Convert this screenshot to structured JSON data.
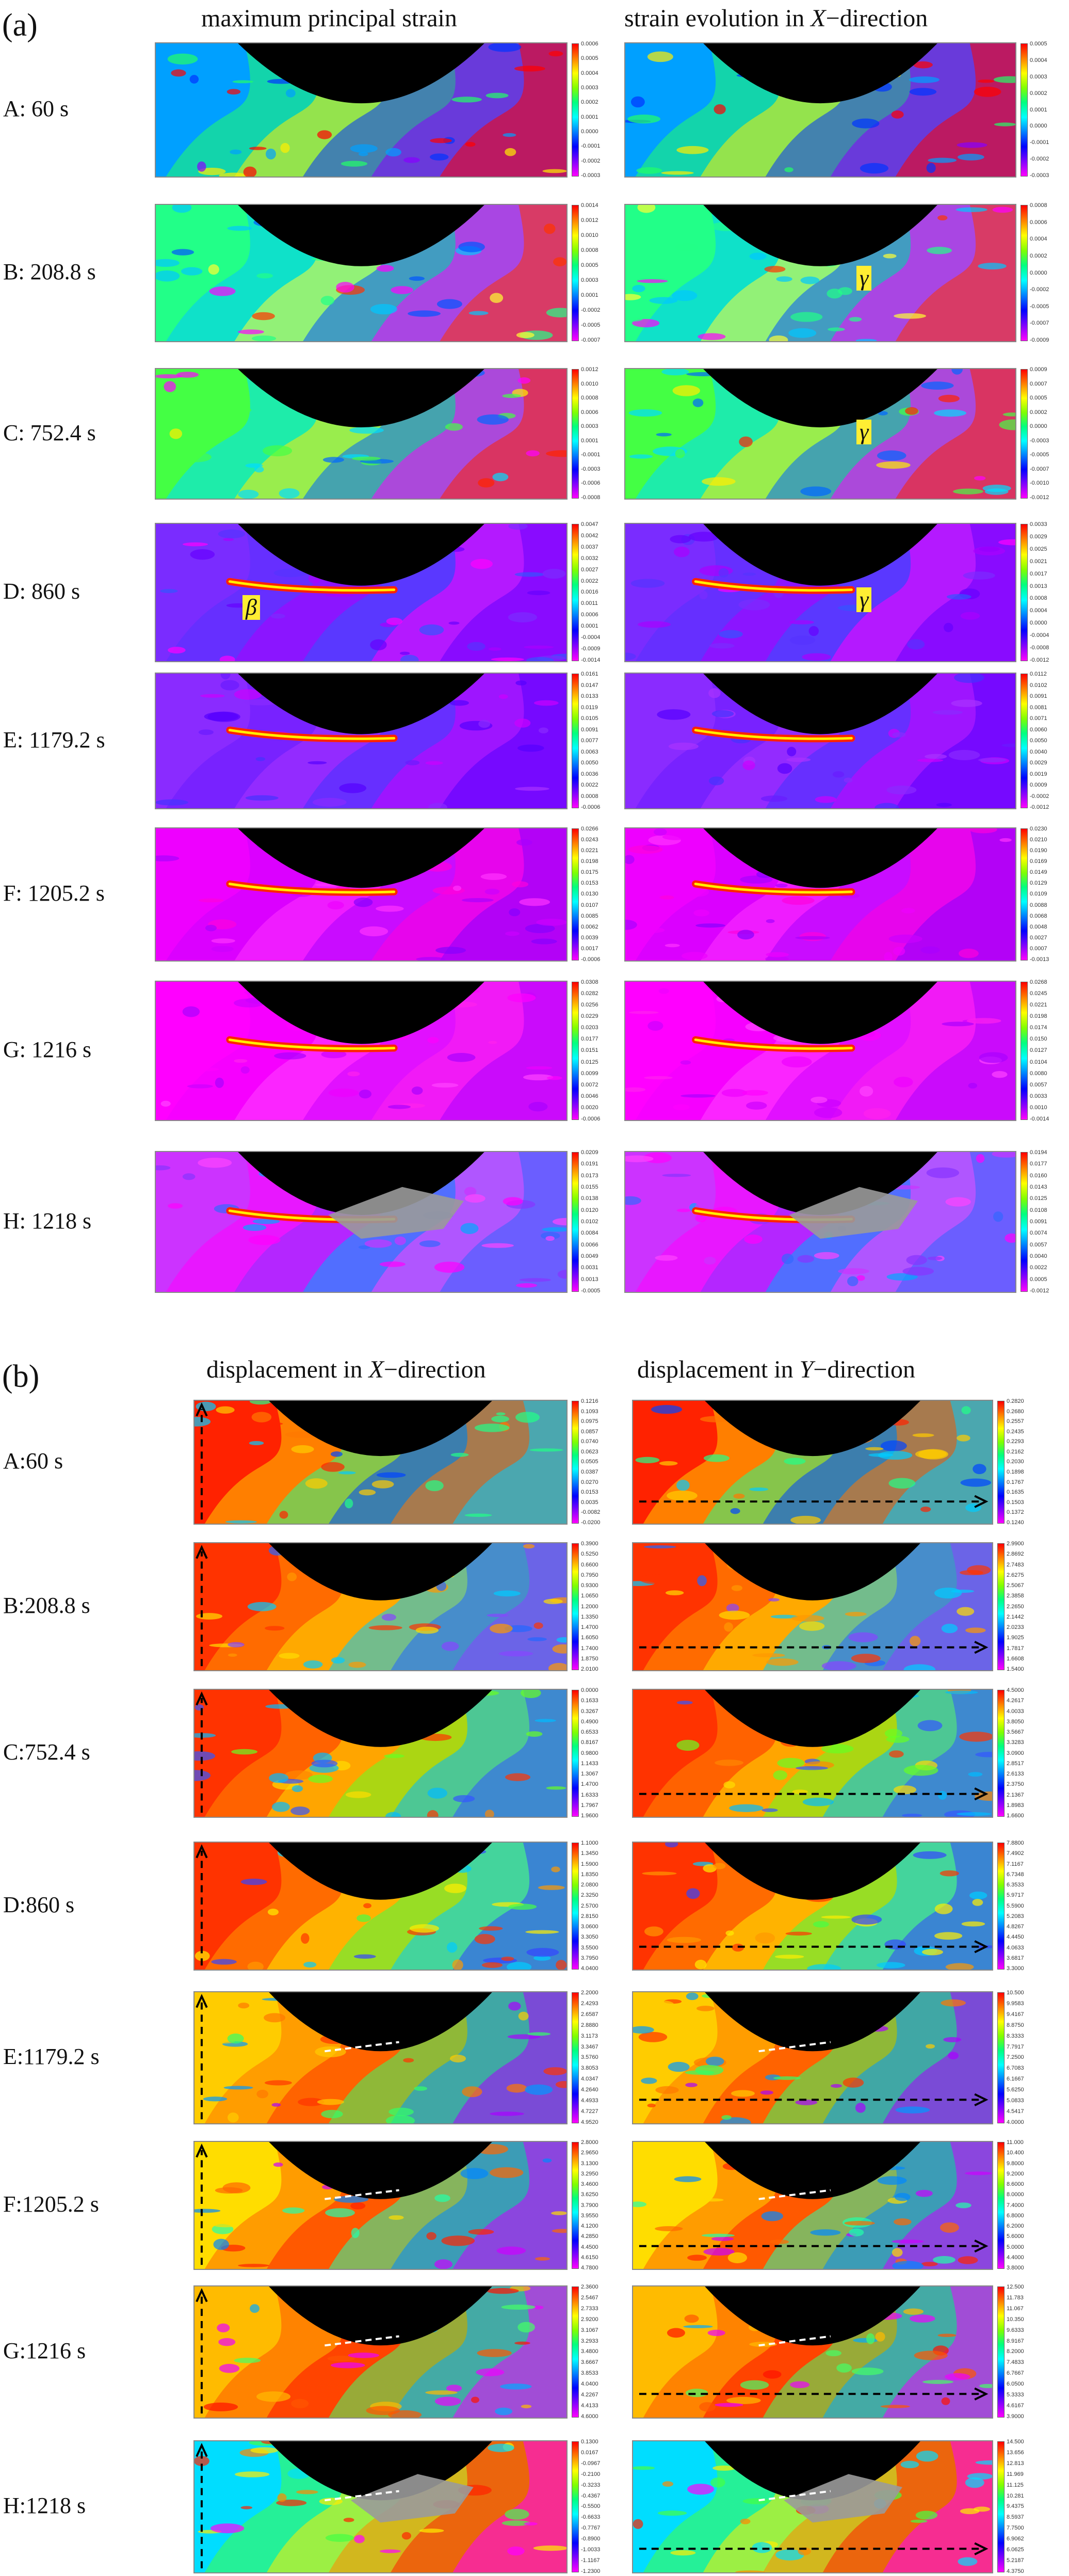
{
  "panel_a": {
    "tag": "(a)",
    "col_left": "maximum principal strain",
    "col_right": "strain evolution in X−direction",
    "rows": [
      {
        "label": "A: 60 s",
        "left_ticks": [
          "0.0006",
          "0.0005",
          "0.0004",
          "0.0003",
          "0.0002",
          "0.0001",
          "0.0000",
          "-0.0001",
          "-0.0002",
          "-0.0003"
        ],
        "right_ticks": [
          "0.0005",
          "0.0004",
          "0.0003",
          "0.0002",
          "0.0001",
          "0.0000",
          "-0.0001",
          "-0.0002",
          "-0.0003"
        ]
      },
      {
        "label": "B: 208.8 s",
        "left_ticks": [
          "0.0014",
          "0.0012",
          "0.0010",
          "0.0008",
          "0.0005",
          "0.0003",
          "0.0001",
          "-0.0002",
          "-0.0005",
          "-0.0007"
        ],
        "right_ticks": [
          "0.0008",
          "0.0006",
          "0.0004",
          "0.0002",
          "0.0000",
          "-0.0002",
          "-0.0005",
          "-0.0007",
          "-0.0009"
        ]
      },
      {
        "label": "C: 752.4 s",
        "left_ticks": [
          "0.0012",
          "0.0010",
          "0.0008",
          "0.0006",
          "0.0003",
          "0.0001",
          "-0.0001",
          "-0.0003",
          "-0.0006",
          "-0.0008"
        ],
        "right_ticks": [
          "0.0009",
          "0.0007",
          "0.0005",
          "0.0002",
          "0.0000",
          "-0.0003",
          "-0.0005",
          "-0.0007",
          "-0.0010",
          "-0.0012"
        ]
      },
      {
        "label": "D: 860 s",
        "left_ticks": [
          "0.0047",
          "0.0042",
          "0.0037",
          "0.0032",
          "0.0027",
          "0.0022",
          "0.0016",
          "0.0011",
          "0.0006",
          "0.0001",
          "-0.0004",
          "-0.0009",
          "-0.0014"
        ],
        "right_ticks": [
          "0.0033",
          "0.0029",
          "0.0025",
          "0.0021",
          "0.0017",
          "0.0013",
          "0.0008",
          "0.0004",
          "0.0000",
          "-0.0004",
          "-0.0008",
          "-0.0012"
        ]
      },
      {
        "label": "E: 1179.2 s",
        "left_ticks": [
          "0.0161",
          "0.0147",
          "0.0133",
          "0.0119",
          "0.0105",
          "0.0091",
          "0.0077",
          "0.0063",
          "0.0050",
          "0.0036",
          "0.0022",
          "0.0008",
          "-0.0006"
        ],
        "right_ticks": [
          "0.0112",
          "0.0102",
          "0.0091",
          "0.0081",
          "0.0071",
          "0.0060",
          "0.0050",
          "0.0040",
          "0.0029",
          "0.0019",
          "0.0009",
          "-0.0002",
          "-0.0012"
        ]
      },
      {
        "label": "F: 1205.2 s",
        "left_ticks": [
          "0.0266",
          "0.0243",
          "0.0221",
          "0.0198",
          "0.0175",
          "0.0153",
          "0.0130",
          "0.0107",
          "0.0085",
          "0.0062",
          "0.0039",
          "0.0017",
          "-0.0006"
        ],
        "right_ticks": [
          "0.0230",
          "0.0210",
          "0.0190",
          "0.0169",
          "0.0149",
          "0.0129",
          "0.0109",
          "0.0088",
          "0.0068",
          "0.0048",
          "0.0027",
          "0.0007",
          "-0.0013"
        ]
      },
      {
        "label": "G: 1216 s",
        "left_ticks": [
          "0.0308",
          "0.0282",
          "0.0256",
          "0.0229",
          "0.0203",
          "0.0177",
          "0.0151",
          "0.0125",
          "0.0099",
          "0.0072",
          "0.0046",
          "0.0020",
          "-0.0006"
        ],
        "right_ticks": [
          "0.0268",
          "0.0245",
          "0.0221",
          "0.0198",
          "0.0174",
          "0.0150",
          "0.0127",
          "0.0104",
          "0.0080",
          "0.0057",
          "0.0033",
          "0.0010",
          "-0.0014"
        ]
      },
      {
        "label": "H: 1218 s",
        "left_ticks": [
          "0.0209",
          "0.0191",
          "0.0173",
          "0.0155",
          "0.0138",
          "0.0120",
          "0.0102",
          "0.0084",
          "0.0066",
          "0.0049",
          "0.0031",
          "0.0013",
          "-0.0005"
        ],
        "right_ticks": [
          "0.0194",
          "0.0177",
          "0.0160",
          "0.0143",
          "0.0125",
          "0.0108",
          "0.0091",
          "0.0074",
          "0.0057",
          "0.0040",
          "0.0022",
          "0.0005",
          "-0.0012"
        ]
      }
    ],
    "markers": {
      "beta": "β",
      "gamma": "γ"
    }
  },
  "panel_b": {
    "tag": "(b)",
    "col_left": "displacement in X−direction",
    "col_right": "displacement in Y−direction",
    "rows": [
      {
        "label": "A:60 s",
        "left_ticks": [
          "0.1216",
          "0.1093",
          "0.0975",
          "0.0857",
          "0.0740",
          "0.0623",
          "0.0505",
          "0.0387",
          "0.0270",
          "0.0153",
          "0.0035",
          "-0.0082",
          "-0.0200"
        ],
        "right_ticks": [
          "0.2820",
          "0.2680",
          "0.2557",
          "0.2435",
          "0.2293",
          "0.2162",
          "0.2030",
          "0.1898",
          "0.1767",
          "0.1635",
          "0.1503",
          "0.1372",
          "0.1240"
        ]
      },
      {
        "label": "B:208.8 s",
        "left_ticks": [
          "0.3900",
          "0.5250",
          "0.6600",
          "0.7950",
          "0.9300",
          "1.0650",
          "1.2000",
          "1.3350",
          "1.4700",
          "1.6050",
          "1.7400",
          "1.8750",
          "2.0100"
        ],
        "right_ticks": [
          "2.9900",
          "2.8692",
          "2.7483",
          "2.6275",
          "2.5067",
          "2.3858",
          "2.2650",
          "2.1442",
          "2.0233",
          "1.9025",
          "1.7817",
          "1.6608",
          "1.5400"
        ]
      },
      {
        "label": "C:752.4 s",
        "left_ticks": [
          "0.0000",
          "0.1633",
          "0.3267",
          "0.4900",
          "0.6533",
          "0.8167",
          "0.9800",
          "1.1433",
          "1.3067",
          "1.4700",
          "1.6333",
          "1.7967",
          "1.9600"
        ],
        "right_ticks": [
          "4.5000",
          "4.2617",
          "4.0033",
          "3.8050",
          "3.5667",
          "3.3283",
          "3.0900",
          "2.8517",
          "2.6133",
          "2.3750",
          "2.1367",
          "1.8983",
          "1.6600"
        ]
      },
      {
        "label": "D:860 s",
        "left_ticks": [
          "1.1000",
          "1.3450",
          "1.5900",
          "1.8350",
          "2.0800",
          "2.3250",
          "2.5700",
          "2.8150",
          "3.0600",
          "3.3050",
          "3.5500",
          "3.7950",
          "4.0400"
        ],
        "right_ticks": [
          "7.8800",
          "7.4902",
          "7.1167",
          "6.7348",
          "6.3533",
          "5.9717",
          "5.5900",
          "5.2083",
          "4.8267",
          "4.4450",
          "4.0633",
          "3.6817",
          "3.3000"
        ]
      },
      {
        "label": "E:1179.2 s",
        "left_ticks": [
          "2.2000",
          "2.4293",
          "2.6587",
          "2.8880",
          "3.1173",
          "3.3467",
          "3.5760",
          "3.8053",
          "4.0347",
          "4.2640",
          "4.4933",
          "4.7227",
          "4.9520"
        ],
        "right_ticks": [
          "10.500",
          "9.9583",
          "9.4167",
          "8.8750",
          "8.3333",
          "7.7917",
          "7.2500",
          "6.7083",
          "6.1667",
          "5.6250",
          "5.0833",
          "4.5417",
          "4.0000"
        ]
      },
      {
        "label": "F:1205.2 s",
        "left_ticks": [
          "2.8000",
          "2.9650",
          "3.1300",
          "3.2950",
          "3.4600",
          "3.6250",
          "3.7900",
          "3.9550",
          "4.1200",
          "4.2850",
          "4.4500",
          "4.6150",
          "4.7800"
        ],
        "right_ticks": [
          "11.000",
          "10.400",
          "9.8000",
          "9.2000",
          "8.6000",
          "8.0000",
          "7.4000",
          "6.8000",
          "6.2000",
          "5.6000",
          "5.0000",
          "4.4000",
          "3.8000"
        ]
      },
      {
        "label": "G:1216 s",
        "left_ticks": [
          "2.3600",
          "2.5467",
          "2.7333",
          "2.9200",
          "3.1067",
          "3.2933",
          "3.4800",
          "3.6667",
          "3.8533",
          "4.0400",
          "4.2267",
          "4.4133",
          "4.6000"
        ],
        "right_ticks": [
          "12.500",
          "11.783",
          "11.067",
          "10.350",
          "9.6333",
          "8.9167",
          "8.2000",
          "7.4833",
          "6.7667",
          "6.0500",
          "5.3333",
          "4.6167",
          "3.9000"
        ]
      },
      {
        "label": "H:1218 s",
        "left_ticks": [
          "0.1300",
          "0.0167",
          "-0.0967",
          "-0.2100",
          "-0.3233",
          "-0.4367",
          "-0.5500",
          "-0.6633",
          "-0.7767",
          "-0.8900",
          "-1.0033",
          "-1.1167",
          "-1.2300"
        ],
        "right_ticks": [
          "14.500",
          "13.656",
          "12.813",
          "11.969",
          "11.125",
          "10.281",
          "9.4375",
          "8.5937",
          "7.7500",
          "6.9062",
          "6.0625",
          "5.2187",
          "4.3750"
        ]
      }
    ]
  }
}
